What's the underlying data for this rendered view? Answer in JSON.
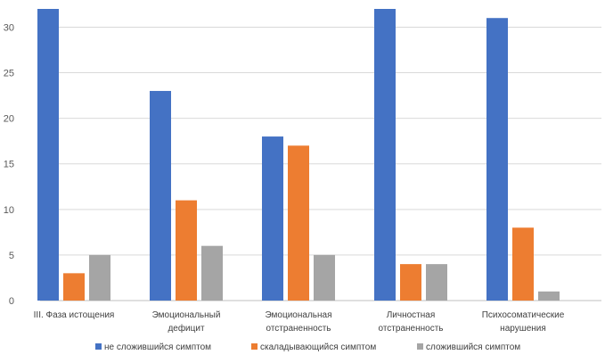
{
  "chart_data": {
    "type": "bar",
    "title": "",
    "xlabel": "",
    "ylabel": "",
    "ylim": [
      0,
      32
    ],
    "yticks": [
      0,
      5,
      10,
      15,
      20,
      25,
      30
    ],
    "grid": true,
    "legend_position": "bottom",
    "categories": [
      [
        "III. Фаза истощения"
      ],
      [
        "Эмоциональный",
        "дефицит"
      ],
      [
        "Эмоциональная",
        "отстраненность"
      ],
      [
        "Личностная",
        "отстраненность"
      ],
      [
        "Психосоматические",
        "нарушения"
      ]
    ],
    "series": [
      {
        "name": "не сложившийся симптом",
        "color": "#4472C4",
        "values": [
          32,
          23,
          18,
          32,
          31
        ]
      },
      {
        "name": "скаладывающийся симптом",
        "color": "#ED7D31",
        "values": [
          3,
          11,
          17,
          4,
          8
        ]
      },
      {
        "name": "сложившийся симптом",
        "color": "#A5A5A5",
        "values": [
          5,
          6,
          5,
          4,
          1
        ]
      }
    ]
  }
}
